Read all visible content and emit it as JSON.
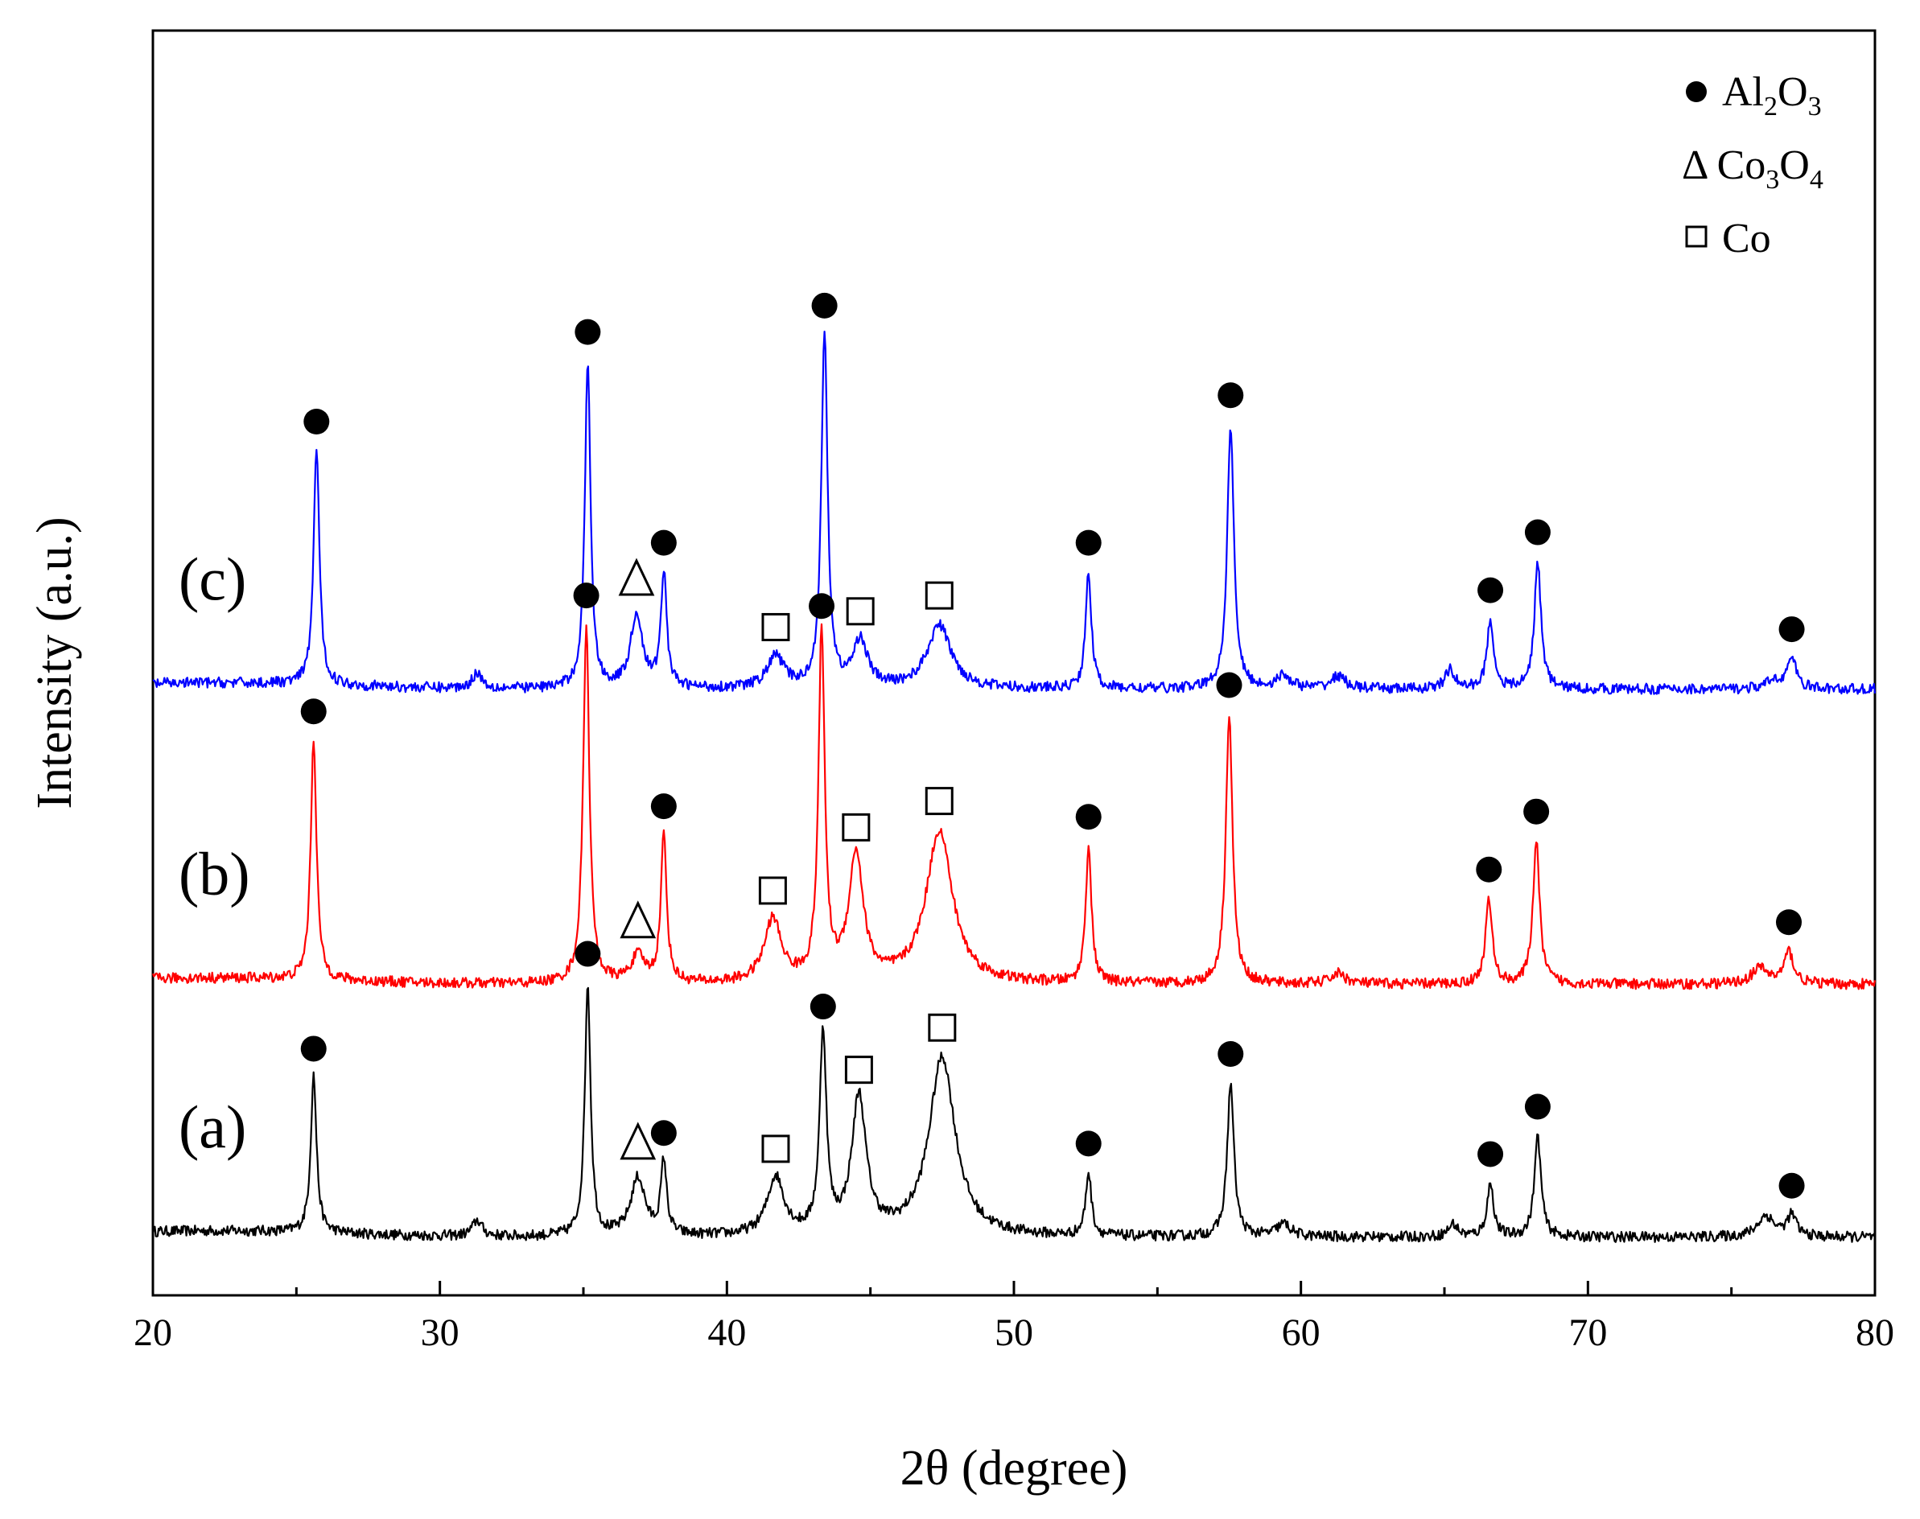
{
  "chart_data": {
    "type": "line",
    "title": "",
    "xlabel": "2θ (degree)",
    "ylabel": "Intensity (a.u.)",
    "xlim": [
      20,
      80
    ],
    "ylim": [
      0,
      12
    ],
    "xticks": [
      "20",
      "30",
      "40",
      "50",
      "60",
      "70",
      "80"
    ],
    "grid": false,
    "legend_position": "top-right",
    "legend": [
      {
        "marker": "circle",
        "text": "Al",
        "sub1": "2",
        "text2": "O",
        "sub2": "3"
      },
      {
        "marker": "triangle",
        "text": "Δ Co",
        "sub1": "3",
        "text2": "O",
        "sub2": "4"
      },
      {
        "marker": "square",
        "text": "Co",
        "sub1": "",
        "text2": "",
        "sub2": ""
      }
    ],
    "phase_markers": {
      "circle": "Al2O3",
      "triangle": "Co3O4",
      "square": "Co"
    },
    "series": [
      {
        "name": "(a)",
        "color": "#000000",
        "baseline": 0.55,
        "noise": 0.1,
        "peaks": [
          {
            "x": 25.6,
            "h": 1.5,
            "w": 0.12,
            "m": "circle"
          },
          {
            "x": 31.3,
            "h": 0.15,
            "w": 0.2,
            "m": ""
          },
          {
            "x": 35.15,
            "h": 2.4,
            "w": 0.12,
            "m": "circle"
          },
          {
            "x": 36.9,
            "h": 0.55,
            "w": 0.3,
            "m": "triangle"
          },
          {
            "x": 37.8,
            "h": 0.7,
            "w": 0.12,
            "m": "circle"
          },
          {
            "x": 41.7,
            "h": 0.55,
            "w": 0.35,
            "m": "square"
          },
          {
            "x": 43.35,
            "h": 1.9,
            "w": 0.14,
            "m": "circle"
          },
          {
            "x": 44.6,
            "h": 1.3,
            "w": 0.3,
            "m": "square"
          },
          {
            "x": 47.5,
            "h": 1.7,
            "w": 0.55,
            "m": "square"
          },
          {
            "x": 52.6,
            "h": 0.6,
            "w": 0.12,
            "m": "circle"
          },
          {
            "x": 57.55,
            "h": 1.45,
            "w": 0.14,
            "m": "circle"
          },
          {
            "x": 59.4,
            "h": 0.12,
            "w": 0.3,
            "m": ""
          },
          {
            "x": 65.3,
            "h": 0.12,
            "w": 0.2,
            "m": ""
          },
          {
            "x": 66.6,
            "h": 0.5,
            "w": 0.14,
            "m": "circle"
          },
          {
            "x": 68.25,
            "h": 0.95,
            "w": 0.14,
            "m": "circle"
          },
          {
            "x": 76.2,
            "h": 0.2,
            "w": 0.35,
            "m": ""
          },
          {
            "x": 77.1,
            "h": 0.2,
            "w": 0.2,
            "m": "circle"
          }
        ]
      },
      {
        "name": "(b)",
        "color": "#ff0000",
        "baseline": 2.95,
        "noise": 0.1,
        "peaks": [
          {
            "x": 25.6,
            "h": 2.3,
            "w": 0.12,
            "m": "circle"
          },
          {
            "x": 35.1,
            "h": 3.4,
            "w": 0.13,
            "m": "circle"
          },
          {
            "x": 36.9,
            "h": 0.25,
            "w": 0.3,
            "m": "triangle"
          },
          {
            "x": 37.8,
            "h": 1.4,
            "w": 0.12,
            "m": "circle"
          },
          {
            "x": 41.6,
            "h": 0.6,
            "w": 0.35,
            "m": "square"
          },
          {
            "x": 43.3,
            "h": 3.3,
            "w": 0.13,
            "m": "circle"
          },
          {
            "x": 44.5,
            "h": 1.2,
            "w": 0.3,
            "m": "square"
          },
          {
            "x": 47.4,
            "h": 1.45,
            "w": 0.55,
            "m": "square"
          },
          {
            "x": 52.6,
            "h": 1.3,
            "w": 0.12,
            "m": "circle"
          },
          {
            "x": 57.5,
            "h": 2.55,
            "w": 0.14,
            "m": "circle"
          },
          {
            "x": 61.3,
            "h": 0.1,
            "w": 0.3,
            "m": ""
          },
          {
            "x": 66.55,
            "h": 0.8,
            "w": 0.14,
            "m": "circle"
          },
          {
            "x": 68.2,
            "h": 1.35,
            "w": 0.14,
            "m": "circle"
          },
          {
            "x": 76.0,
            "h": 0.15,
            "w": 0.35,
            "m": ""
          },
          {
            "x": 77.0,
            "h": 0.3,
            "w": 0.2,
            "m": "circle"
          }
        ]
      },
      {
        "name": "(c)",
        "color": "#0000ff",
        "baseline": 5.75,
        "noise": 0.1,
        "peaks": [
          {
            "x": 25.7,
            "h": 2.25,
            "w": 0.12,
            "m": "circle"
          },
          {
            "x": 31.3,
            "h": 0.15,
            "w": 0.2,
            "m": ""
          },
          {
            "x": 35.15,
            "h": 3.1,
            "w": 0.12,
            "m": "circle"
          },
          {
            "x": 36.85,
            "h": 0.7,
            "w": 0.25,
            "m": "triangle"
          },
          {
            "x": 37.8,
            "h": 1.1,
            "w": 0.12,
            "m": "circle"
          },
          {
            "x": 41.7,
            "h": 0.3,
            "w": 0.35,
            "m": "square"
          },
          {
            "x": 43.4,
            "h": 3.35,
            "w": 0.13,
            "m": "circle"
          },
          {
            "x": 44.65,
            "h": 0.45,
            "w": 0.3,
            "m": "square"
          },
          {
            "x": 47.4,
            "h": 0.6,
            "w": 0.5,
            "m": "square"
          },
          {
            "x": 52.6,
            "h": 1.1,
            "w": 0.12,
            "m": "circle"
          },
          {
            "x": 57.55,
            "h": 2.5,
            "w": 0.14,
            "m": "circle"
          },
          {
            "x": 59.4,
            "h": 0.12,
            "w": 0.3,
            "m": ""
          },
          {
            "x": 61.3,
            "h": 0.12,
            "w": 0.3,
            "m": ""
          },
          {
            "x": 65.2,
            "h": 0.18,
            "w": 0.2,
            "m": ""
          },
          {
            "x": 66.6,
            "h": 0.65,
            "w": 0.14,
            "m": "circle"
          },
          {
            "x": 68.25,
            "h": 1.2,
            "w": 0.14,
            "m": "circle"
          },
          {
            "x": 76.5,
            "h": 0.08,
            "w": 0.3,
            "m": ""
          },
          {
            "x": 77.1,
            "h": 0.28,
            "w": 0.2,
            "m": "circle"
          }
        ]
      }
    ]
  }
}
